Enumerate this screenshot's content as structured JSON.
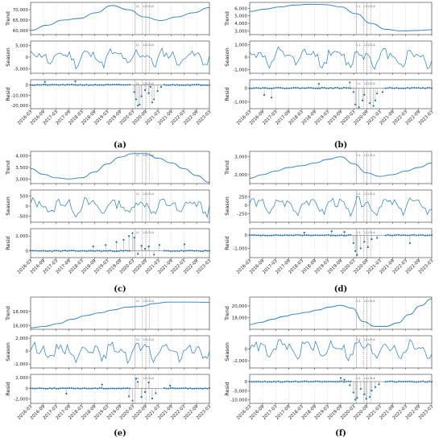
{
  "chart_data": [
    {
      "type": "line",
      "caption": "(a)",
      "x_ticks": [
        "2016-03",
        "2016-09",
        "2017-03",
        "2017-09",
        "2018-03",
        "2018-09",
        "2019-03",
        "2019-09",
        "2020-03",
        "2020-09",
        "2021-03",
        "2021-09",
        "2022-03",
        "2022-09",
        "2023-03"
      ],
      "event_labels": [
        "L1",
        "L2",
        "L3",
        "L4"
      ],
      "panels": [
        {
          "ylabel": "Trend",
          "yticks": [
            "70,000",
            "65,000",
            "60,000"
          ],
          "ylim": [
            58000,
            73500
          ],
          "kind": "trend",
          "values": [
            60000,
            62500,
            65000,
            65800,
            68500,
            72000,
            70000,
            66500,
            64800,
            66500,
            68500,
            71000
          ]
        },
        {
          "ylabel": "Season",
          "yticks": [
            "5,000",
            "0",
            "-5,000"
          ],
          "ylim": [
            -7000,
            7000
          ],
          "kind": "season",
          "amplitude": 4000,
          "seed": 11
        },
        {
          "ylabel": "Resid",
          "yticks": [
            "0",
            "-10,000",
            "-20,000"
          ],
          "ylim": [
            -23000,
            5000
          ],
          "kind": "resid",
          "seed": 21,
          "outliers": [
            [
              0.08,
              3000
            ],
            [
              0.25,
              3500
            ],
            [
              0.58,
              -7000
            ],
            [
              0.59,
              -14000
            ],
            [
              0.6,
              -20000
            ],
            [
              0.61,
              -19000
            ],
            [
              0.62,
              -11000
            ],
            [
              0.64,
              -5000
            ],
            [
              0.66,
              -8000
            ],
            [
              0.67,
              -2000
            ],
            [
              0.68,
              -17000
            ],
            [
              0.69,
              -14000
            ],
            [
              0.71,
              -6000
            ],
            [
              0.73,
              -2000
            ]
          ]
        }
      ]
    },
    {
      "type": "line",
      "caption": "(b)",
      "x_ticks": [
        "2016-03",
        "2016-09",
        "2017-03",
        "2017-09",
        "2018-03",
        "2018-09",
        "2019-03",
        "2019-09",
        "2020-03",
        "2020-09",
        "2021-03",
        "2021-09",
        "2022-03",
        "2022-09",
        "2023-03"
      ],
      "event_labels": [
        "L1",
        "L2",
        "L3",
        "L4"
      ],
      "panels": [
        {
          "ylabel": "Trend",
          "yticks": [
            "6,000",
            "5,000",
            "4,000",
            "3,000"
          ],
          "ylim": [
            2500,
            6800
          ],
          "kind": "trend",
          "values": [
            5600,
            5900,
            6200,
            6450,
            6550,
            6500,
            6200,
            5300,
            4000,
            3200,
            3000,
            3050,
            3150
          ]
        },
        {
          "ylabel": "Season",
          "yticks": [
            "1,000",
            "0",
            "-1,000"
          ],
          "ylim": [
            -1300,
            1300
          ],
          "kind": "season",
          "amplitude": 800,
          "seed": 12
        },
        {
          "ylabel": "Resid",
          "yticks": [
            "0",
            "-1,000"
          ],
          "ylim": [
            -1500,
            600
          ],
          "kind": "resid",
          "seed": 22,
          "outliers": [
            [
              0.08,
              -500
            ],
            [
              0.12,
              -700
            ],
            [
              0.38,
              300
            ],
            [
              0.55,
              400
            ],
            [
              0.57,
              -300
            ],
            [
              0.58,
              -1200
            ],
            [
              0.6,
              -1400
            ],
            [
              0.62,
              -900
            ],
            [
              0.63,
              -500
            ],
            [
              0.66,
              -1100
            ],
            [
              0.68,
              -1300
            ],
            [
              0.69,
              -900
            ],
            [
              0.7,
              -400
            ],
            [
              0.73,
              -300
            ]
          ]
        }
      ]
    },
    {
      "type": "line",
      "caption": "(c)",
      "x_ticks": [
        "2016-03",
        "2016-09",
        "2017-03",
        "2017-09",
        "2018-03",
        "2018-09",
        "2019-03",
        "2019-09",
        "2020-03",
        "2020-09",
        "2021-03",
        "2021-09",
        "2022-03",
        "2022-09",
        "2023-03"
      ],
      "event_labels": [
        "L1",
        "L2",
        "L3",
        "L4"
      ],
      "panels": [
        {
          "ylabel": "Trend",
          "yticks": [
            "4,000",
            "3,500",
            "3,000"
          ],
          "ylim": [
            2800,
            4200
          ],
          "kind": "trend",
          "values": [
            3450,
            3200,
            3050,
            3000,
            3050,
            3300,
            3650,
            3950,
            4100,
            4100,
            3900,
            3700,
            3450,
            3150,
            2850
          ]
        },
        {
          "ylabel": "Season",
          "yticks": [
            "500",
            "0",
            "-500"
          ],
          "ylim": [
            -800,
            800
          ],
          "kind": "season",
          "amplitude": 450,
          "seed": 13
        },
        {
          "ylabel": "Resid",
          "yticks": [
            "2,000",
            "0"
          ],
          "ylim": [
            -900,
            3000
          ],
          "kind": "resid",
          "seed": 23,
          "outliers": [
            [
              0.35,
              600
            ],
            [
              0.42,
              800
            ],
            [
              0.48,
              1200
            ],
            [
              0.52,
              1500
            ],
            [
              0.55,
              2000
            ],
            [
              0.57,
              2400
            ],
            [
              0.58,
              1800
            ],
            [
              0.6,
              -400
            ],
            [
              0.62,
              700
            ],
            [
              0.64,
              300
            ],
            [
              0.66,
              600
            ],
            [
              0.69,
              -500
            ],
            [
              0.72,
              800
            ],
            [
              0.86,
              900
            ]
          ]
        }
      ]
    },
    {
      "type": "line",
      "caption": "(d)",
      "x_ticks": [
        "2016-03",
        "2016-09",
        "2017-03",
        "2017-09",
        "2018-03",
        "2018-09",
        "2019-03",
        "2019-09",
        "2020-03",
        "2020-09",
        "2021-03",
        "2021-09",
        "2022-03",
        "2022-09",
        "2023-03"
      ],
      "event_labels": [
        "L1",
        "L2",
        "L3",
        "L4"
      ],
      "panels": [
        {
          "ylabel": "Trend",
          "yticks": [
            "3,000",
            "2,000"
          ],
          "ylim": [
            1500,
            3300
          ],
          "kind": "trend",
          "values": [
            1800,
            2000,
            2200,
            2400,
            2500,
            2650,
            2850,
            3000,
            2600,
            2100,
            1900,
            2000,
            2200,
            2400,
            2650
          ]
        },
        {
          "ylabel": "Season",
          "yticks": [
            "250",
            "0",
            "-250"
          ],
          "ylim": [
            -500,
            450
          ],
          "kind": "season",
          "amplitude": 260,
          "seed": 14
        },
        {
          "ylabel": "Resid",
          "yticks": [
            "0",
            "-1,000"
          ],
          "ylim": [
            -1700,
            500
          ],
          "kind": "resid",
          "seed": 24,
          "outliers": [
            [
              0.3,
              200
            ],
            [
              0.45,
              300
            ],
            [
              0.52,
              250
            ],
            [
              0.57,
              -600
            ],
            [
              0.58,
              -1200
            ],
            [
              0.59,
              -1500
            ],
            [
              0.61,
              -1000
            ],
            [
              0.63,
              -500
            ],
            [
              0.65,
              -900
            ],
            [
              0.67,
              -300
            ],
            [
              0.7,
              -200
            ],
            [
              0.88,
              -600
            ]
          ]
        }
      ]
    },
    {
      "type": "line",
      "caption": "(e)",
      "x_ticks": [
        "2016-03",
        "2016-09",
        "2017-03",
        "2017-09",
        "2018-03",
        "2018-09",
        "2019-03",
        "2019-09",
        "2020-03",
        "2020-09",
        "2021-03",
        "2021-09",
        "2022-03",
        "2022-09",
        "2023-03"
      ],
      "event_labels": [
        "L1",
        "L2",
        "L3",
        "L4"
      ],
      "panels": [
        {
          "ylabel": "Trend",
          "yticks": [
            "18,000",
            "16,000"
          ],
          "ylim": [
            15500,
            20000
          ],
          "kind": "trend",
          "values": [
            15700,
            15900,
            16300,
            16900,
            17400,
            17800,
            18200,
            18600,
            18700,
            19100,
            19300,
            19300,
            19300,
            19250
          ]
        },
        {
          "ylabel": "Season",
          "yticks": [
            "2,000",
            "0",
            "-2,000"
          ],
          "ylim": [
            -2600,
            2400
          ],
          "kind": "season",
          "amplitude": 1500,
          "seed": 15
        },
        {
          "ylabel": "Resid",
          "yticks": [
            "2,000",
            "0",
            "-2,000"
          ],
          "ylim": [
            -2800,
            2600
          ],
          "kind": "resid",
          "seed": 25,
          "outliers": [
            [
              0.2,
              -1000
            ],
            [
              0.4,
              700
            ],
            [
              0.55,
              -1500
            ],
            [
              0.57,
              -2300
            ],
            [
              0.59,
              1800
            ],
            [
              0.6,
              1200
            ],
            [
              0.62,
              -1600
            ],
            [
              0.64,
              -700
            ],
            [
              0.66,
              1100
            ],
            [
              0.68,
              -1900
            ],
            [
              0.7,
              -900
            ],
            [
              0.78,
              500
            ]
          ]
        }
      ]
    },
    {
      "type": "line",
      "caption": "(f)",
      "x_ticks": [
        "2016-03",
        "2016-09",
        "2017-03",
        "2017-09",
        "2018-03",
        "2018-09",
        "2019-03",
        "2019-09",
        "2020-03",
        "2020-09",
        "2021-03",
        "2021-09",
        "2022-03",
        "2022-09",
        "2023-03"
      ],
      "event_labels": [
        "L1",
        "L2",
        "L3",
        "L4"
      ],
      "panels": [
        {
          "ylabel": "Trend",
          "yticks": [
            "20,000",
            "18,000"
          ],
          "ylim": [
            16000,
            21500
          ],
          "kind": "trend",
          "values": [
            16800,
            17200,
            17700,
            18200,
            18600,
            18900,
            19300,
            19800,
            20100,
            19600,
            17300,
            16500,
            16500,
            17100,
            18500,
            20000,
            21200
          ]
        },
        {
          "ylabel": "Season",
          "yticks": [
            "0",
            "-2,000"
          ],
          "ylim": [
            -3200,
            2200
          ],
          "kind": "season",
          "amplitude": 1700,
          "seed": 16
        },
        {
          "ylabel": "Resid",
          "yticks": [
            "0",
            "-5,000",
            "-10,000"
          ],
          "ylim": [
            -12000,
            4000
          ],
          "kind": "resid",
          "seed": 26,
          "outliers": [
            [
              0.5,
              2000
            ],
            [
              0.52,
              1000
            ],
            [
              0.55,
              -2000
            ],
            [
              0.57,
              -6000
            ],
            [
              0.58,
              -10000
            ],
            [
              0.59,
              -9000
            ],
            [
              0.61,
              -4000
            ],
            [
              0.63,
              -7000
            ],
            [
              0.64,
              -9500
            ],
            [
              0.66,
              -8500
            ],
            [
              0.67,
              -5000
            ],
            [
              0.69,
              -3000
            ],
            [
              0.71,
              -1500
            ]
          ]
        }
      ]
    }
  ],
  "colors": {
    "line": "#2b7bba",
    "dot": "#1f6fae",
    "zero": "#555555",
    "grid": "#e6e6e6",
    "axes": "#333333",
    "vline": "#888888"
  }
}
